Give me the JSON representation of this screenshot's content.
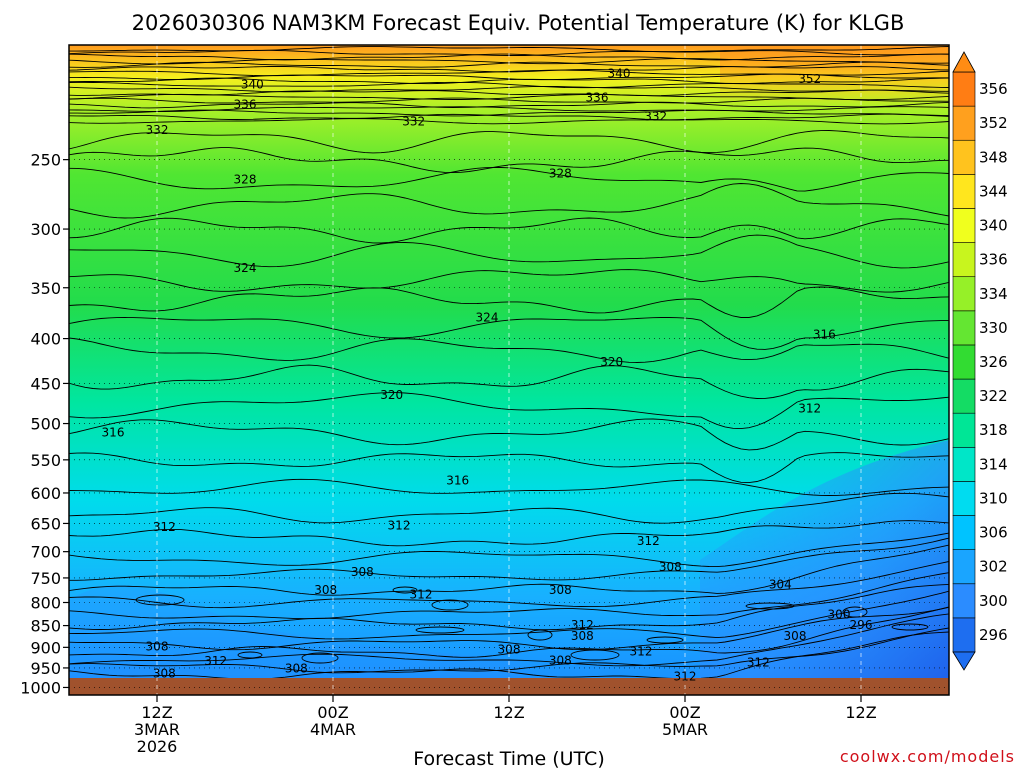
{
  "chart_data": {
    "type": "heatmap",
    "title": "2026030306 NAM3KM Forecast Equiv. Potential Temperature (K) for KLGB",
    "xlabel": "Forecast Time (UTC)",
    "ylabel": "",
    "credit": "coolwx.com/models",
    "units": "K",
    "y_axis": {
      "scale": "log-pressure",
      "range_hPa": [
        1020,
        185
      ],
      "ticks": [
        "250",
        "300",
        "350",
        "400",
        "450",
        "500",
        "550",
        "600",
        "650",
        "700",
        "750",
        "800",
        "850",
        "900",
        "950",
        "1000"
      ],
      "tick_values": [
        250,
        300,
        350,
        400,
        450,
        500,
        550,
        600,
        650,
        700,
        750,
        800,
        850,
        900,
        950,
        1000
      ]
    },
    "x_axis": {
      "range_hours": [
        0,
        60
      ],
      "ticks": [
        {
          "hour": 6,
          "lines": [
            "12Z",
            "3MAR",
            "2026"
          ]
        },
        {
          "hour": 18,
          "lines": [
            "00Z",
            "4MAR"
          ]
        },
        {
          "hour": 30,
          "lines": [
            "12Z"
          ]
        },
        {
          "hour": 42,
          "lines": [
            "00Z",
            "5MAR"
          ]
        },
        {
          "hour": 54,
          "lines": [
            "12Z"
          ]
        }
      ]
    },
    "colorbar": {
      "levels": [
        "296",
        "300",
        "302",
        "306",
        "310",
        "314",
        "318",
        "322",
        "326",
        "330",
        "334",
        "336",
        "340",
        "344",
        "348",
        "352",
        "356"
      ],
      "colors": [
        "#1e6ef0",
        "#2b8cff",
        "#1aa5ff",
        "#00c3ff",
        "#00dcf0",
        "#00e6c8",
        "#00e696",
        "#14dc64",
        "#32dc32",
        "#64e632",
        "#96f028",
        "#c8f51e",
        "#f0ff1e",
        "#ffe61e",
        "#ffc31e",
        "#ffa01e",
        "#ff7d14"
      ]
    },
    "contour_labels": [
      {
        "value": "340",
        "hour": 12.5,
        "pres": 205
      },
      {
        "value": "340",
        "hour": 37.5,
        "pres": 199
      },
      {
        "value": "352",
        "hour": 50.5,
        "pres": 202
      },
      {
        "value": "336",
        "hour": 12.0,
        "pres": 216
      },
      {
        "value": "336",
        "hour": 36.0,
        "pres": 212
      },
      {
        "value": "332",
        "hour": 6.0,
        "pres": 231
      },
      {
        "value": "332",
        "hour": 23.5,
        "pres": 226
      },
      {
        "value": "332",
        "hour": 40.0,
        "pres": 223
      },
      {
        "value": "328",
        "hour": 12.0,
        "pres": 263
      },
      {
        "value": "328",
        "hour": 33.5,
        "pres": 259
      },
      {
        "value": "324",
        "hour": 12.0,
        "pres": 332
      },
      {
        "value": "324",
        "hour": 28.5,
        "pres": 378
      },
      {
        "value": "320",
        "hour": 37.0,
        "pres": 425
      },
      {
        "value": "320",
        "hour": 22.0,
        "pres": 463
      },
      {
        "value": "316",
        "hour": 51.5,
        "pres": 395
      },
      {
        "value": "316",
        "hour": 3.0,
        "pres": 511
      },
      {
        "value": "316",
        "hour": 26.5,
        "pres": 580
      },
      {
        "value": "312",
        "hour": 50.5,
        "pres": 480
      },
      {
        "value": "312",
        "hour": 6.5,
        "pres": 655
      },
      {
        "value": "312",
        "hour": 22.5,
        "pres": 653
      },
      {
        "value": "312",
        "hour": 39.5,
        "pres": 680
      },
      {
        "value": "308",
        "hour": 20.0,
        "pres": 737
      },
      {
        "value": "308",
        "hour": 17.5,
        "pres": 773
      },
      {
        "value": "308",
        "hour": 33.5,
        "pres": 773
      },
      {
        "value": "308",
        "hour": 41.0,
        "pres": 728
      },
      {
        "value": "312",
        "hour": 24.0,
        "pres": 782
      },
      {
        "value": "304",
        "hour": 48.5,
        "pres": 762
      },
      {
        "value": "300",
        "hour": 52.5,
        "pres": 825
      },
      {
        "value": "296",
        "hour": 54.0,
        "pres": 848
      },
      {
        "value": "312",
        "hour": 35.0,
        "pres": 848
      },
      {
        "value": "308",
        "hour": 35.0,
        "pres": 872
      },
      {
        "value": "308",
        "hour": 49.5,
        "pres": 872
      },
      {
        "value": "308",
        "hour": 6.0,
        "pres": 897
      },
      {
        "value": "308",
        "hour": 30.0,
        "pres": 904
      },
      {
        "value": "312",
        "hour": 39.0,
        "pres": 909
      },
      {
        "value": "312",
        "hour": 10.0,
        "pres": 932
      },
      {
        "value": "308",
        "hour": 33.5,
        "pres": 930
      },
      {
        "value": "312",
        "hour": 47.0,
        "pres": 935
      },
      {
        "value": "308",
        "hour": 15.5,
        "pres": 950
      },
      {
        "value": "308",
        "hour": 6.5,
        "pres": 963
      },
      {
        "value": "312",
        "hour": 42.0,
        "pres": 970
      }
    ]
  }
}
